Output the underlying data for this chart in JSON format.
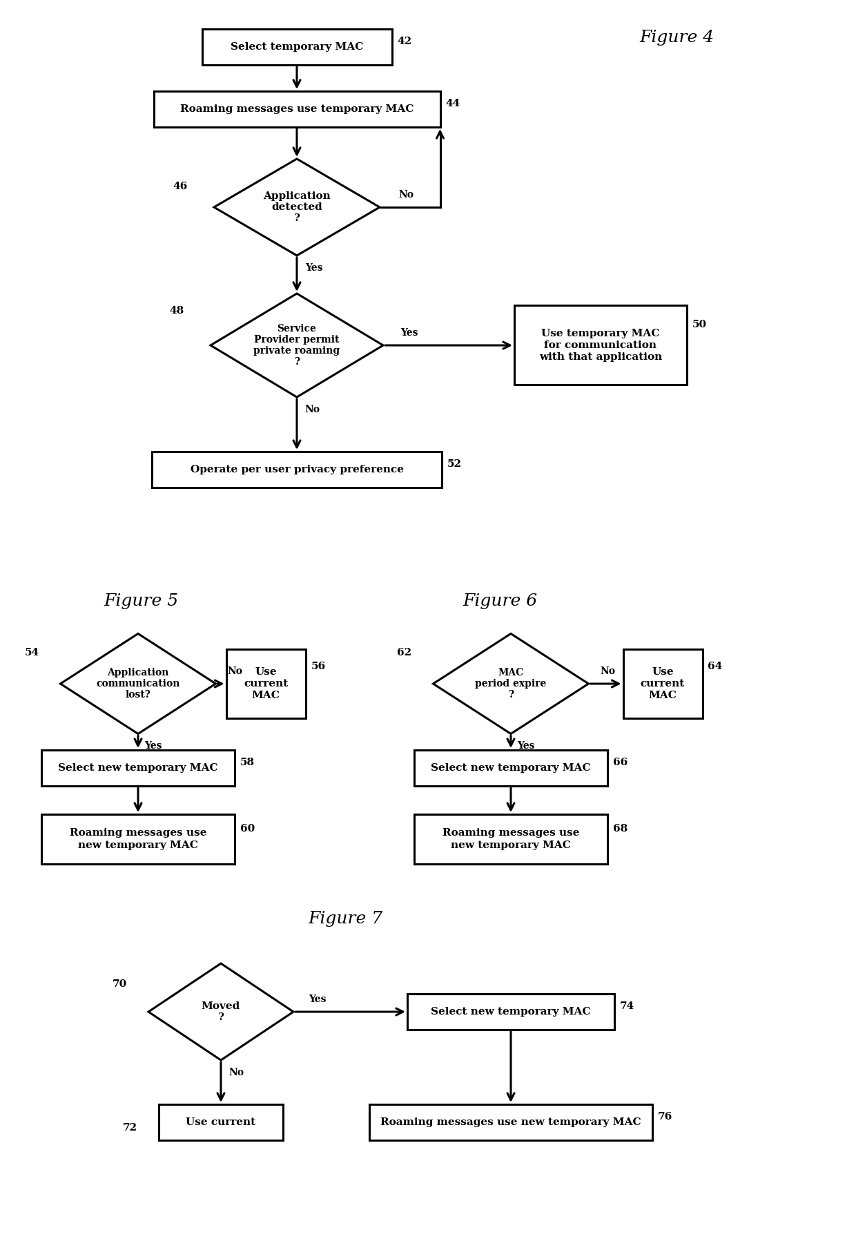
{
  "bg_color": "#ffffff",
  "fig4_title": "Figure 4",
  "fig5_title": "Figure 5",
  "fig6_title": "Figure 6",
  "fig7_title": "Figure 7",
  "lw": 2.2,
  "fs_label": 11,
  "fs_label_sm": 10,
  "fs_num": 11,
  "fs_fig": 18,
  "fs_yesno": 10
}
